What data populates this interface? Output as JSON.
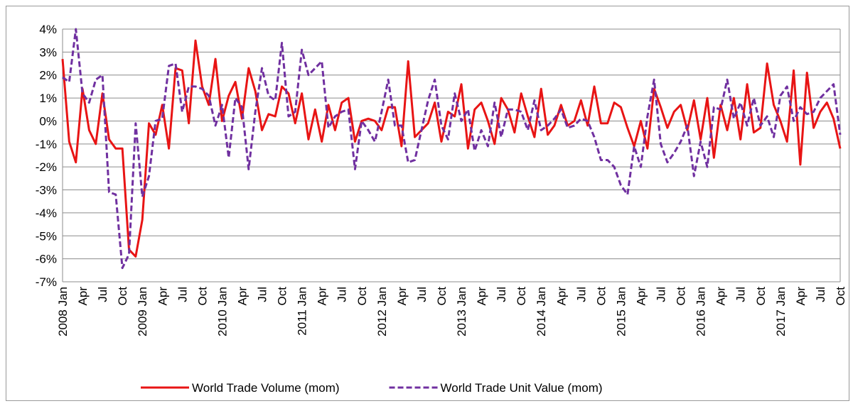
{
  "chart_data": {
    "type": "line",
    "categories": [
      "2008 Jan",
      null,
      null,
      "Apr",
      null,
      null,
      "Jul",
      null,
      null,
      "Oct",
      null,
      null,
      "2009 Jan",
      null,
      null,
      "Apr",
      null,
      null,
      "Jul",
      null,
      null,
      "Oct",
      null,
      null,
      "2010 Jan",
      null,
      null,
      "Apr",
      null,
      null,
      "Jul",
      null,
      null,
      "Oct",
      null,
      null,
      "2011 Jan",
      null,
      null,
      "Apr",
      null,
      null,
      "Jul",
      null,
      null,
      "Oct",
      null,
      null,
      "2012 Jan",
      null,
      null,
      "Apr",
      null,
      null,
      "Jul",
      null,
      null,
      "Oct",
      null,
      null,
      "2013 Jan",
      null,
      null,
      "Apr",
      null,
      null,
      "Jul",
      null,
      null,
      "Oct",
      null,
      null,
      "2014 Jan",
      null,
      null,
      "Apr",
      null,
      null,
      "Jul",
      null,
      null,
      "Oct",
      null,
      null,
      "2015 Jan",
      null,
      null,
      "Apr",
      null,
      null,
      "Jul",
      null,
      null,
      "Oct",
      null,
      null,
      "2016 Jan",
      null,
      null,
      "Apr",
      null,
      null,
      "Jul",
      null,
      null,
      "Oct",
      null,
      null,
      "2017 Jan",
      null,
      null,
      "Apr",
      null,
      null,
      "Jul",
      null,
      null,
      "Oct"
    ],
    "series": [
      {
        "name": "World Trade Volume (mom)",
        "color": "#e81414",
        "dash": false,
        "values": [
          2.7,
          -0.9,
          -1.8,
          1.4,
          -0.4,
          -1.0,
          1.2,
          -0.8,
          -1.2,
          -1.2,
          -5.6,
          -5.9,
          -4.3,
          -0.1,
          -0.6,
          0.7,
          -1.2,
          2.3,
          2.2,
          -0.1,
          3.5,
          1.5,
          0.7,
          2.7,
          0.0,
          1.1,
          1.7,
          0.1,
          2.3,
          1.3,
          -0.4,
          0.3,
          0.2,
          1.5,
          1.2,
          -0.1,
          1.2,
          -0.8,
          0.5,
          -0.9,
          0.7,
          -0.4,
          0.8,
          1.0,
          -0.9,
          0.0,
          0.1,
          0.0,
          -0.4,
          0.6,
          0.6,
          -1.1,
          2.6,
          -0.7,
          -0.4,
          -0.1,
          0.8,
          -0.9,
          0.4,
          0.2,
          1.6,
          -1.2,
          0.5,
          0.8,
          0.0,
          -1.0,
          1.0,
          0.5,
          -0.5,
          1.2,
          0.2,
          -0.7,
          1.4,
          -0.6,
          -0.2,
          0.7,
          -0.2,
          0.0,
          0.9,
          -0.2,
          1.5,
          -0.1,
          -0.1,
          0.8,
          0.6,
          -0.3,
          -1.1,
          0.0,
          -1.2,
          1.4,
          0.6,
          -0.3,
          0.4,
          0.7,
          -0.4,
          0.9,
          -0.8,
          1.0,
          -1.6,
          0.7,
          -0.4,
          1.0,
          -0.8,
          1.6,
          -0.5,
          -0.3,
          2.5,
          0.7,
          0.0,
          -0.9,
          2.2,
          -1.9,
          2.1,
          -0.3,
          0.4,
          0.8,
          0.1,
          -1.2
        ]
      },
      {
        "name": "World Trade Unit Value (mom)",
        "color": "#7030a0",
        "dash": true,
        "values": [
          1.9,
          1.7,
          4.0,
          1.2,
          0.8,
          1.8,
          2.0,
          -3.1,
          -3.2,
          -6.4,
          -5.8,
          -0.1,
          -3.3,
          -2.4,
          0.0,
          0.1,
          2.4,
          2.5,
          0.4,
          1.5,
          1.5,
          1.4,
          1.1,
          -0.2,
          0.7,
          -1.6,
          1.0,
          0.6,
          -2.1,
          0.4,
          2.3,
          1.1,
          0.9,
          3.4,
          0.2,
          0.4,
          3.1,
          2.0,
          2.3,
          2.6,
          -0.3,
          0.2,
          0.4,
          0.5,
          -2.1,
          0.0,
          -0.4,
          -0.9,
          0.4,
          1.8,
          -0.2,
          -0.2,
          -1.8,
          -1.7,
          -0.4,
          0.9,
          1.8,
          -0.2,
          -0.8,
          1.2,
          0.0,
          0.5,
          -1.3,
          -0.4,
          -1.1,
          0.8,
          -0.7,
          0.5,
          0.5,
          0.4,
          -0.4,
          0.9,
          -0.4,
          -0.2,
          0.1,
          0.5,
          -0.3,
          -0.2,
          0.1,
          0.0,
          -0.7,
          -1.7,
          -1.7,
          -2.0,
          -2.8,
          -3.2,
          -1.1,
          -2.0,
          0.2,
          1.8,
          -1.0,
          -1.8,
          -1.4,
          -0.9,
          -0.2,
          -2.4,
          -0.9,
          -2.0,
          0.6,
          0.5,
          1.8,
          0.1,
          0.8,
          -0.2,
          1.0,
          -0.2,
          0.2,
          -0.7,
          1.1,
          1.5,
          0.0,
          0.6,
          0.3,
          0.4,
          1.0,
          1.3,
          1.6,
          -0.6
        ]
      }
    ],
    "ylim": [
      -7,
      4
    ],
    "yticks": [
      {
        "value": 4,
        "label": "4%"
      },
      {
        "value": 3,
        "label": "3%"
      },
      {
        "value": 2,
        "label": "2%"
      },
      {
        "value": 1,
        "label": "1%"
      },
      {
        "value": 0,
        "label": "0%"
      },
      {
        "value": -1,
        "label": "-1%"
      },
      {
        "value": -2,
        "label": "-2%"
      },
      {
        "value": -3,
        "label": "-3%"
      },
      {
        "value": -4,
        "label": "-4%"
      },
      {
        "value": -5,
        "label": "-5%"
      },
      {
        "value": -6,
        "label": "-6%"
      },
      {
        "value": -7,
        "label": "-7%"
      }
    ],
    "grid": true,
    "legend": "bottom"
  }
}
